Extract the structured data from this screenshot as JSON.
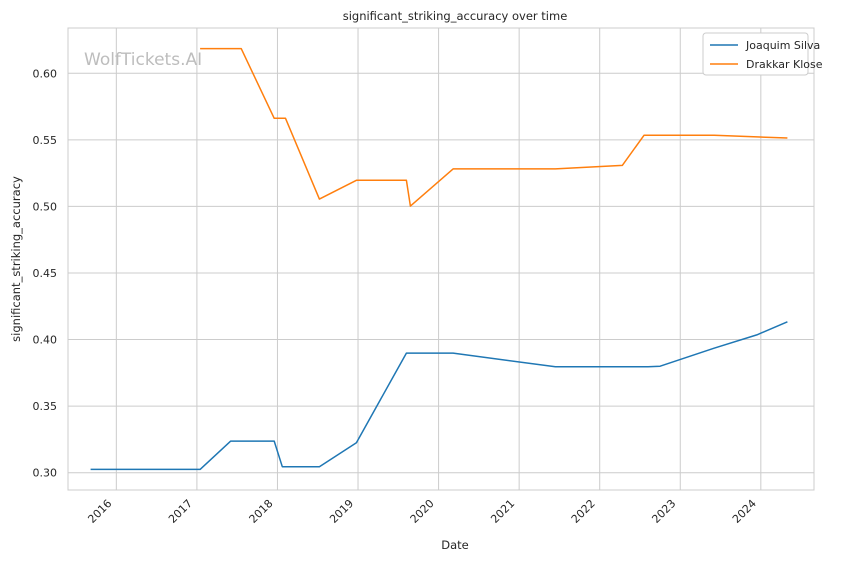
{
  "chart_data": {
    "type": "line",
    "title": "significant_striking_accuracy over time",
    "xlabel": "Date",
    "ylabel": "significant_striking_accuracy",
    "watermark": "WolfTickets.AI",
    "x_ticks": [
      "2016",
      "2017",
      "2018",
      "2019",
      "2020",
      "2021",
      "2022",
      "2023",
      "2024"
    ],
    "y_ticks": [
      "0.30",
      "0.35",
      "0.40",
      "0.45",
      "0.50",
      "0.55",
      "0.60"
    ],
    "xlim": [
      2015.4,
      2024.66
    ],
    "ylim": [
      0.287,
      0.634
    ],
    "grid": true,
    "legend_position": "top-right",
    "series": [
      {
        "name": "Joaquim Silva",
        "color": "#1f77b4",
        "x": [
          2015.68,
          2017.04,
          2017.42,
          2017.96,
          2018.06,
          2018.52,
          2018.98,
          2019.6,
          2020.18,
          2021.45,
          2022.6,
          2022.75,
          2023.42,
          2023.95,
          2024.33
        ],
        "y": [
          0.3025,
          0.3025,
          0.3237,
          0.3237,
          0.3045,
          0.3045,
          0.3225,
          0.3898,
          0.3898,
          0.3795,
          0.3795,
          0.38,
          0.3935,
          0.4035,
          0.4133
        ]
      },
      {
        "name": "Drakkar Klose",
        "color": "#ff7f0e",
        "x": [
          2017.04,
          2017.55,
          2017.96,
          2018.1,
          2018.52,
          2018.98,
          2019.6,
          2019.65,
          2020.18,
          2021.45,
          2022.28,
          2022.55,
          2023.42,
          2023.95,
          2024.33
        ],
        "y": [
          0.6185,
          0.6185,
          0.5662,
          0.5662,
          0.5055,
          0.5196,
          0.5196,
          0.5002,
          0.5282,
          0.5282,
          0.5308,
          0.5534,
          0.5534,
          0.5522,
          0.5514
        ]
      }
    ]
  }
}
